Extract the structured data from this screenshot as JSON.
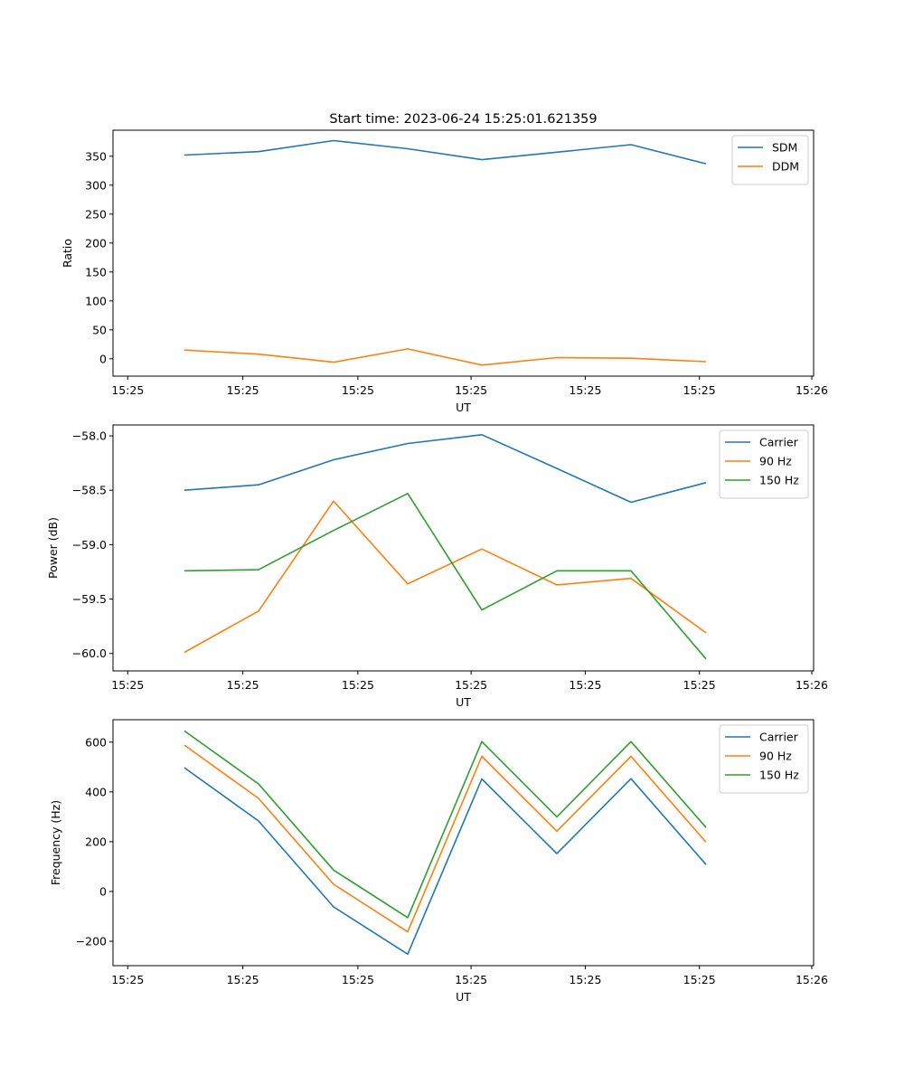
{
  "figure": {
    "title": "Start time: 2023-06-24 15:25:01.621359"
  },
  "colors": {
    "blue": "#1f77b4",
    "orange": "#ff7f0e",
    "green": "#2ca02c"
  },
  "chart_data": [
    {
      "type": "line",
      "xlabel": "UT",
      "ylabel": "Ratio",
      "x_tick_labels": [
        "15:25",
        "15:25",
        "15:25",
        "15:25",
        "15:25",
        "15:25",
        "15:26"
      ],
      "y_ticks": [
        0,
        50,
        100,
        150,
        200,
        250,
        300,
        350
      ],
      "ylim": [
        -30,
        395
      ],
      "legend_position": "top-right",
      "series": [
        {
          "name": "SDM",
          "values": [
            352,
            358,
            377,
            363,
            344,
            357,
            370,
            337
          ]
        },
        {
          "name": "DDM",
          "values": [
            15,
            8,
            -6,
            17,
            -11,
            2,
            1,
            -5
          ]
        }
      ]
    },
    {
      "type": "line",
      "xlabel": "UT",
      "ylabel": "Power (dB)",
      "x_tick_labels": [
        "15:25",
        "15:25",
        "15:25",
        "15:25",
        "15:25",
        "15:25",
        "15:26"
      ],
      "y_ticks": [
        -60.0,
        -59.5,
        -59.0,
        -58.5,
        -58.0
      ],
      "ylim": [
        -60.16,
        -57.9
      ],
      "legend_position": "top-right",
      "series": [
        {
          "name": "Carrier",
          "values": [
            -58.5,
            -58.45,
            -58.22,
            -58.07,
            -57.99,
            -58.3,
            -58.61,
            -58.43
          ]
        },
        {
          "name": "90 Hz",
          "values": [
            -59.99,
            -59.61,
            -58.6,
            -59.36,
            -59.04,
            -59.37,
            -59.31,
            -59.81
          ]
        },
        {
          "name": "150 Hz",
          "values": [
            -59.24,
            -59.23,
            -58.87,
            -58.53,
            -59.6,
            -59.24,
            -59.24,
            -60.05
          ]
        }
      ]
    },
    {
      "type": "line",
      "xlabel": "UT",
      "ylabel": "Frequency (Hz)",
      "x_tick_labels": [
        "15:25",
        "15:25",
        "15:25",
        "15:25",
        "15:25",
        "15:25",
        "15:26"
      ],
      "y_ticks": [
        -200,
        0,
        200,
        400,
        600
      ],
      "ylim": [
        -298,
        690
      ],
      "legend_position": "top-right",
      "series": [
        {
          "name": "Carrier",
          "values": [
            497,
            283,
            -62,
            -252,
            452,
            152,
            453,
            108
          ]
        },
        {
          "name": "90 Hz",
          "values": [
            588,
            374,
            29,
            -162,
            543,
            242,
            543,
            198
          ]
        },
        {
          "name": "150 Hz",
          "values": [
            645,
            432,
            86,
            -105,
            602,
            300,
            602,
            257
          ]
        }
      ]
    }
  ]
}
